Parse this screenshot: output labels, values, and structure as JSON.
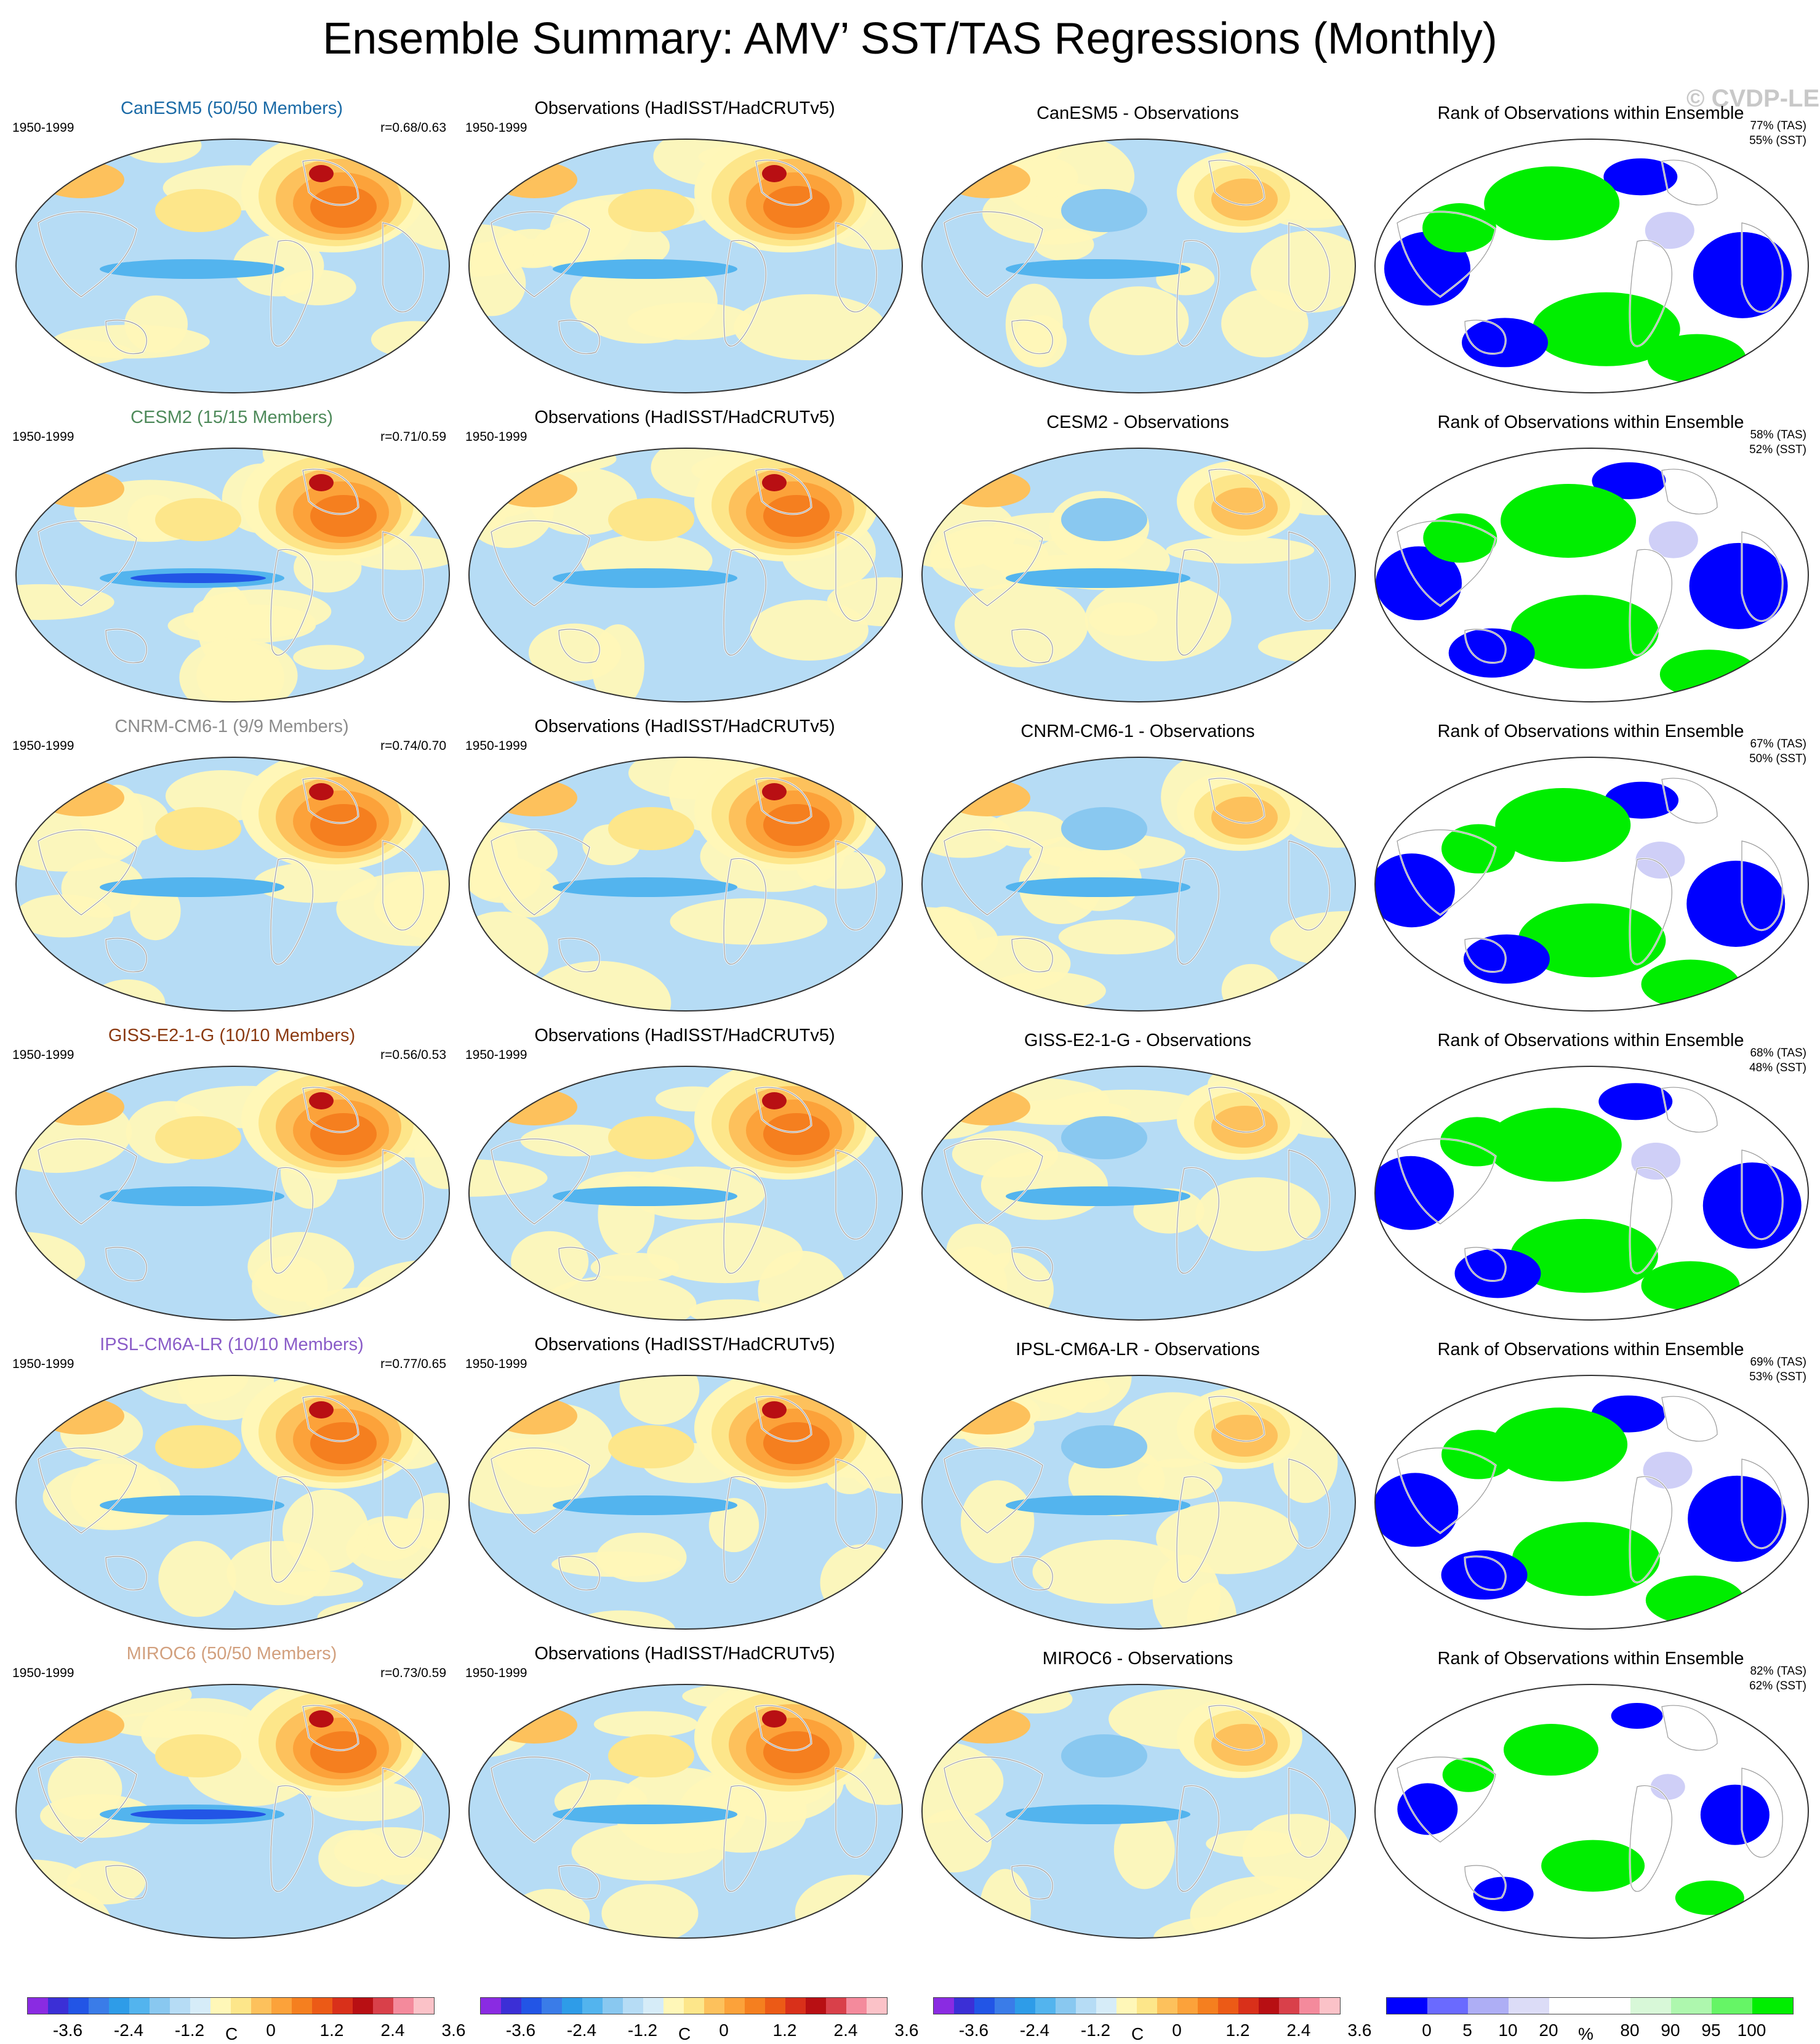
{
  "title": "Ensemble Summary: AMV’ SST/TAS Regressions (Monthly)",
  "watermark": "© CVDP-LE",
  "obs_title": "Observations (HadISST/HadCRUTv5)",
  "rank_title": "Rank of Observations within Ensemble",
  "period": "1950-1999",
  "rows": [
    {
      "model_title": "CanESM5 (50/50 Members)",
      "title_color": "#1a6aa6",
      "corr": "r=0.68/0.63",
      "diff_title": "CanESM5 - Observations",
      "pct_tas": "77% (TAS)",
      "pct_sst": "55% (SST)"
    },
    {
      "model_title": "CESM2 (15/15 Members)",
      "title_color": "#4e8a5a",
      "corr": "r=0.71/0.59",
      "diff_title": "CESM2 - Observations",
      "pct_tas": "58% (TAS)",
      "pct_sst": "52% (SST)"
    },
    {
      "model_title": "CNRM-CM6-1 (9/9 Members)",
      "title_color": "#8c8c8c",
      "corr": "r=0.74/0.70",
      "diff_title": "CNRM-CM6-1 - Observations",
      "pct_tas": "67% (TAS)",
      "pct_sst": "50% (SST)"
    },
    {
      "model_title": "GISS-E2-1-G (10/10 Members)",
      "title_color": "#8b3a12",
      "corr": "r=0.56/0.53",
      "diff_title": "GISS-E2-1-G - Observations",
      "pct_tas": "68% (TAS)",
      "pct_sst": "48% (SST)"
    },
    {
      "model_title": "IPSL-CM6A-LR (10/10 Members)",
      "title_color": "#8a5cc8",
      "corr": "r=0.77/0.65",
      "diff_title": "IPSL-CM6A-LR - Observations",
      "pct_tas": "69% (TAS)",
      "pct_sst": "53% (SST)"
    },
    {
      "model_title": "MIROC6 (50/50 Members)",
      "title_color": "#d2a07e",
      "corr": "r=0.73/0.59",
      "diff_title": "MIROC6 - Observations",
      "pct_tas": "82% (TAS)",
      "pct_sst": "62% (SST)"
    }
  ],
  "colorbar_sst": {
    "colors": [
      "#8a2be2",
      "#3b2fd6",
      "#2255e6",
      "#3a7ce8",
      "#2e9ce8",
      "#53b4ee",
      "#89c8f0",
      "#b6dcf5",
      "#d6ecf8",
      "#fff7b8",
      "#fde68a",
      "#fdc15c",
      "#fca23a",
      "#f57f1f",
      "#ec5a16",
      "#d9301a",
      "#b80f13",
      "#d9404a",
      "#f48a9c",
      "#fbc2c8"
    ],
    "tick_labels": [
      "-3.6",
      "-2.4",
      "-1.2",
      "0",
      "1.2",
      "2.4",
      "3.6"
    ],
    "unit": "C"
  },
  "colorbar_rank": {
    "colors": [
      "#0000ff",
      "#6a6aff",
      "#aeaef5",
      "#dcdcf7",
      "#ffffff",
      "#ffffff",
      "#d8f8d8",
      "#aef7ae",
      "#66f566",
      "#00ee00"
    ],
    "tick_labels": [
      "0",
      "5",
      "10",
      "20",
      "80",
      "90",
      "95",
      "100"
    ],
    "unit": "%"
  }
}
